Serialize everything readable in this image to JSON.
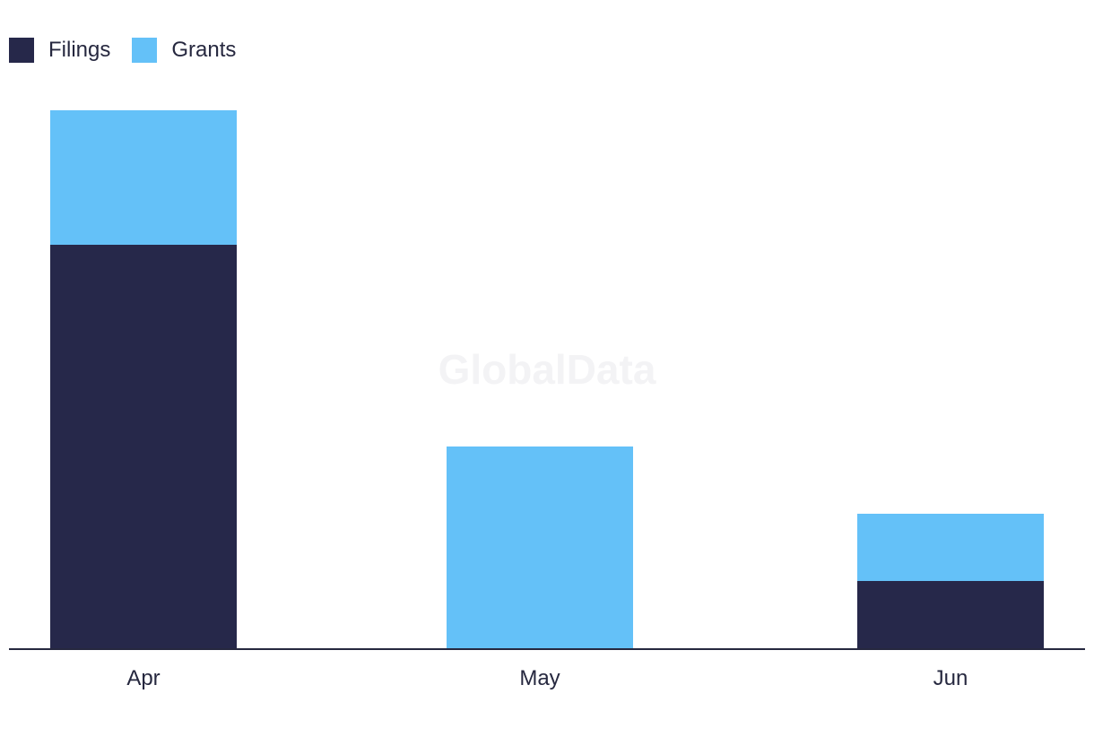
{
  "chart_data": {
    "type": "bar",
    "stacked": true,
    "categories": [
      "Apr",
      "May",
      "Jun"
    ],
    "series": [
      {
        "name": "Filings",
        "color": "#26284a",
        "values": [
          6,
          0,
          1
        ]
      },
      {
        "name": "Grants",
        "color": "#64c1f8",
        "values": [
          2,
          3,
          1
        ]
      }
    ],
    "ylim": [
      0,
      8
    ],
    "grid": false,
    "legend_position": "top-left",
    "watermark": "GlobalData"
  }
}
